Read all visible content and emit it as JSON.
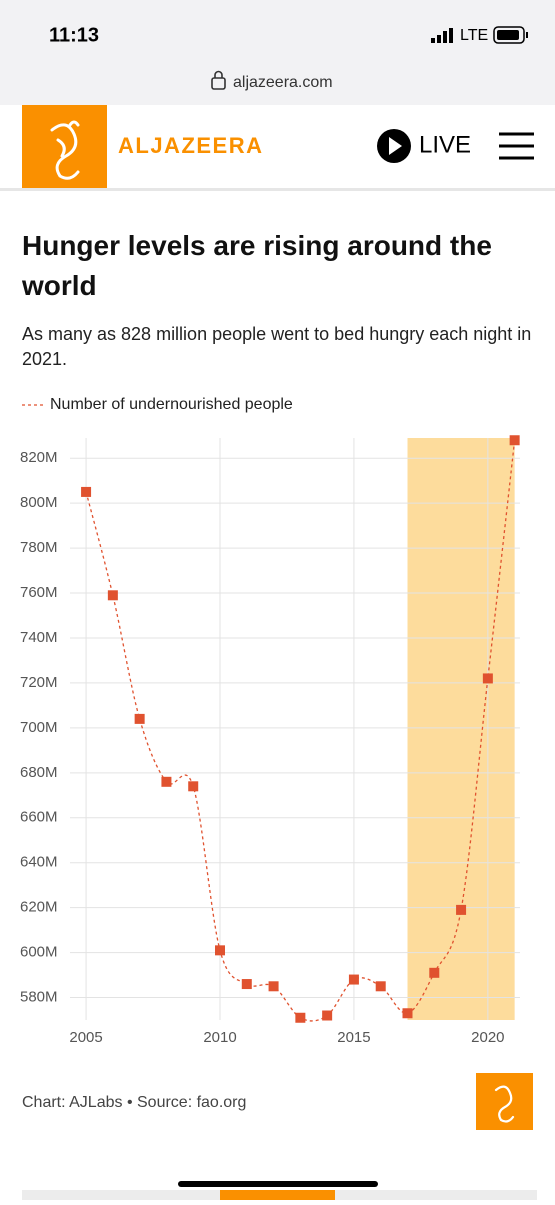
{
  "status": {
    "time": "11:13",
    "network": "LTE"
  },
  "browser": {
    "url": "aljazeera.com"
  },
  "header": {
    "brand": "ALJAZEERA",
    "live": "LIVE"
  },
  "footer": {
    "source": "Chart: AJLabs • Source: fao.org"
  },
  "chart_data": {
    "type": "line",
    "title": "Hunger levels are rising around the world",
    "subtitle": "As many as 828 million people went to bed hungry each night in 2021.",
    "x": [
      2005,
      2006,
      2007,
      2008,
      2009,
      2010,
      2011,
      2012,
      2013,
      2014,
      2015,
      2016,
      2017,
      2018,
      2019,
      2020,
      2021
    ],
    "series": [
      {
        "name": "Number of undernourished people",
        "color": "#e0522f",
        "values": [
          805,
          759,
          704,
          676,
          674,
          601,
          586,
          585,
          571,
          572,
          588,
          585,
          573,
          591,
          619,
          722,
          828
        ]
      }
    ],
    "xlim": [
      2004.4,
      2021.2
    ],
    "xticks": [
      2005,
      2010,
      2015,
      2020
    ],
    "ylim": [
      570,
      829
    ],
    "yticks": [
      {
        "value": 580,
        "label": "580M"
      },
      {
        "value": 600,
        "label": "600M"
      },
      {
        "value": 620,
        "label": "620M"
      },
      {
        "value": 640,
        "label": "640M"
      },
      {
        "value": 660,
        "label": "660M"
      },
      {
        "value": 680,
        "label": "680M"
      },
      {
        "value": 700,
        "label": "700M"
      },
      {
        "value": 720,
        "label": "720M"
      },
      {
        "value": 740,
        "label": "740M"
      },
      {
        "value": 760,
        "label": "760M"
      },
      {
        "value": 780,
        "label": "780M"
      },
      {
        "value": 800,
        "label": "800M"
      },
      {
        "value": 820,
        "label": "820M"
      }
    ],
    "highlight": [
      2017,
      2021
    ],
    "highlight_color": "#fddc9c",
    "grid": true
  }
}
